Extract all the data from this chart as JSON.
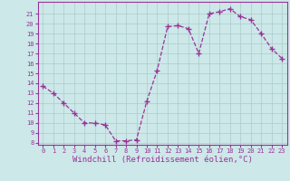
{
  "x": [
    0,
    1,
    2,
    3,
    4,
    5,
    6,
    7,
    8,
    9,
    10,
    11,
    12,
    13,
    14,
    15,
    16,
    17,
    18,
    19,
    20,
    21,
    22,
    23
  ],
  "y": [
    13.7,
    13.0,
    12.0,
    11.0,
    10.0,
    10.0,
    9.8,
    8.2,
    8.2,
    8.3,
    12.2,
    15.3,
    19.7,
    19.8,
    19.5,
    17.0,
    21.0,
    21.2,
    21.5,
    20.7,
    20.4,
    19.0,
    17.5,
    16.5
  ],
  "line_color": "#993399",
  "marker": "+",
  "marker_size": 4,
  "bg_color": "#cce8e8",
  "grid_color": "#aacccc",
  "xlabel": "Windchill (Refroidissement éolien,°C)",
  "ylim_min": 8,
  "ylim_max": 22,
  "xlim_min": -0.5,
  "xlim_max": 23.5,
  "yticks": [
    8,
    9,
    10,
    11,
    12,
    13,
    14,
    15,
    16,
    17,
    18,
    19,
    20,
    21
  ],
  "xticks": [
    0,
    1,
    2,
    3,
    4,
    5,
    6,
    7,
    8,
    9,
    10,
    11,
    12,
    13,
    14,
    15,
    16,
    17,
    18,
    19,
    20,
    21,
    22,
    23
  ],
  "tick_color": "#993399",
  "tick_fontsize": 5.0,
  "xlabel_fontsize": 6.5,
  "border_color": "#993399",
  "linewidth": 0.9
}
